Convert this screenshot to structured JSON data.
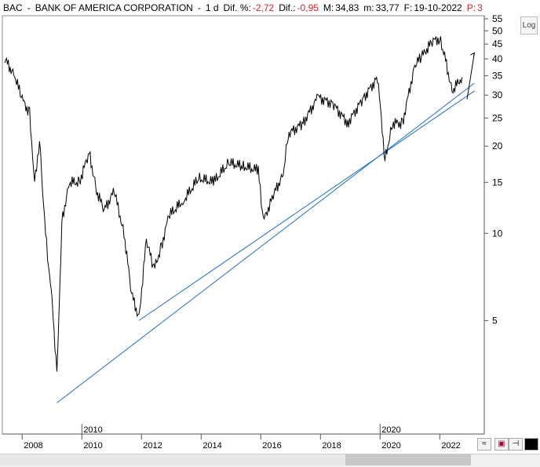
{
  "header": {
    "ticker": "BAC",
    "sep1": "-",
    "company": "BANK OF AMERICA CORPORATION",
    "sep2": "-",
    "period": "1 d",
    "dif_pct_label": "Dif. %:",
    "dif_pct_value": "-2,72",
    "dif_label": "Dif.:",
    "dif_value": "-0,95",
    "max_label": "M:",
    "max_value": "34,83",
    "min_label": "m:",
    "min_value": "33,77",
    "date_label": "F:",
    "date_value": "19-10-2022",
    "price_label": "P:",
    "price_value": "3"
  },
  "log_button": "Log",
  "chart_data": {
    "type": "line",
    "y_scale": "log",
    "ylim": [
      2.2,
      55
    ],
    "y_ticks": [
      5,
      10,
      15,
      20,
      25,
      30,
      35,
      40,
      45,
      50,
      55
    ],
    "x_ticks": [
      "2008",
      "2010",
      "2012",
      "2014",
      "2016",
      "2018",
      "2020",
      "2022"
    ],
    "x_markers": [
      "2010",
      "2020"
    ],
    "series": [
      {
        "values": [
          [
            "2007-06",
            40
          ],
          [
            "2007-10",
            35
          ],
          [
            "2008-01",
            29
          ],
          [
            "2008-04",
            26
          ],
          [
            "2008-06",
            15
          ],
          [
            "2008-08",
            21
          ],
          [
            "2008-10",
            11
          ],
          [
            "2008-12",
            7
          ],
          [
            "2009-01",
            6
          ],
          [
            "2009-03",
            3.2
          ],
          [
            "2009-05",
            11
          ],
          [
            "2009-08",
            15
          ],
          [
            "2009-12",
            15
          ],
          [
            "2010-04",
            19
          ],
          [
            "2010-07",
            14
          ],
          [
            "2010-10",
            12
          ],
          [
            "2011-02",
            14
          ],
          [
            "2011-06",
            10
          ],
          [
            "2011-09",
            6.2
          ],
          [
            "2011-12",
            5.1
          ],
          [
            "2012-03",
            9.5
          ],
          [
            "2012-06",
            7.5
          ],
          [
            "2012-09",
            9
          ],
          [
            "2012-12",
            11.5
          ],
          [
            "2013-06",
            13
          ],
          [
            "2013-12",
            15.5
          ],
          [
            "2014-06",
            15
          ],
          [
            "2014-12",
            17.5
          ],
          [
            "2015-06",
            17
          ],
          [
            "2015-12",
            16.5
          ],
          [
            "2016-02",
            11
          ],
          [
            "2016-06",
            13.5
          ],
          [
            "2016-10",
            16
          ],
          [
            "2016-12",
            22
          ],
          [
            "2017-06",
            24
          ],
          [
            "2017-12",
            29.5
          ],
          [
            "2018-06",
            28
          ],
          [
            "2018-12",
            24
          ],
          [
            "2019-06",
            29
          ],
          [
            "2019-12",
            34.5
          ],
          [
            "2020-03",
            18
          ],
          [
            "2020-06",
            24
          ],
          [
            "2020-10",
            24
          ],
          [
            "2021-03",
            38
          ],
          [
            "2021-06",
            41
          ],
          [
            "2021-10",
            46
          ],
          [
            "2022-01",
            47
          ],
          [
            "2022-03",
            41
          ],
          [
            "2022-06",
            31
          ],
          [
            "2022-10",
            34.6
          ]
        ]
      }
    ],
    "trendlines": [
      {
        "from": [
          "2009-03",
          2.6
        ],
        "to": [
          "2023-03",
          33
        ]
      },
      {
        "from": [
          "2011-12",
          5.0
        ],
        "to": [
          "2023-03",
          31
        ]
      }
    ],
    "annotation_arrow": {
      "from": [
        "2022-12",
        29
      ],
      "to": [
        "2023-03",
        42
      ]
    },
    "grid": false
  }
}
